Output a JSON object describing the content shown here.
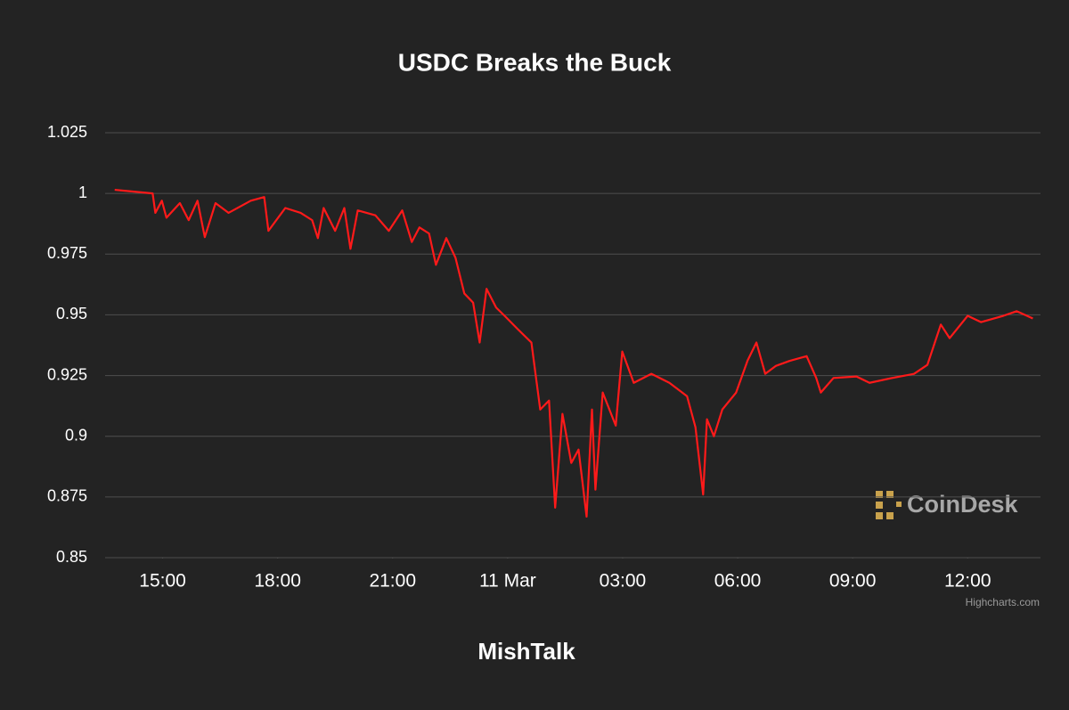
{
  "chart_data": {
    "type": "line",
    "title": "USDC Breaks the Buck",
    "source": "MishTalk",
    "watermark": "CoinDesk",
    "credits": "Highcharts.com",
    "color": "#ff1a1a",
    "grid": true,
    "xlim": [
      13.5,
      37.9
    ],
    "xticks": [
      {
        "value": 15,
        "label": "15:00"
      },
      {
        "value": 18,
        "label": "18:00"
      },
      {
        "value": 21,
        "label": "21:00"
      },
      {
        "value": 24,
        "label": "11 Mar"
      },
      {
        "value": 27,
        "label": "03:00"
      },
      {
        "value": 30,
        "label": "06:00"
      },
      {
        "value": 33,
        "label": "09:00"
      },
      {
        "value": 36,
        "label": "12:00"
      }
    ],
    "ylim": [
      0.85,
      1.025
    ],
    "yticks": [
      1.025,
      1,
      0.975,
      0.95,
      0.925,
      0.9,
      0.875,
      0.85
    ],
    "x": [
      13.75,
      14.74,
      14.81,
      14.98,
      15.1,
      15.45,
      15.68,
      15.91,
      16.1,
      16.38,
      16.72,
      17.3,
      17.65,
      17.76,
      18.2,
      18.6,
      18.9,
      19.05,
      19.2,
      19.5,
      19.74,
      19.9,
      20.09,
      20.55,
      20.9,
      21.25,
      21.5,
      21.7,
      21.95,
      22.13,
      22.4,
      22.64,
      22.87,
      23.1,
      23.27,
      23.45,
      23.7,
      23.92,
      24.27,
      24.62,
      24.85,
      25.08,
      25.24,
      25.43,
      25.66,
      25.85,
      26.06,
      26.2,
      26.29,
      26.48,
      26.82,
      26.99,
      27.29,
      27.75,
      28.22,
      28.68,
      28.9,
      29.1,
      29.2,
      29.38,
      29.6,
      29.96,
      30.26,
      30.49,
      30.72,
      31.0,
      31.35,
      31.8,
      32.05,
      32.17,
      32.5,
      33.1,
      33.44,
      34.0,
      34.6,
      34.95,
      35.3,
      35.53,
      36.0,
      36.35,
      36.93,
      37.28,
      37.7
    ],
    "values": [
      1.0015,
      1.0,
      0.992,
      0.997,
      0.99,
      0.996,
      0.989,
      0.997,
      0.982,
      0.996,
      0.992,
      0.997,
      0.9985,
      0.9846,
      0.994,
      0.992,
      0.989,
      0.9816,
      0.994,
      0.9846,
      0.994,
      0.9772,
      0.993,
      0.991,
      0.9846,
      0.993,
      0.98,
      0.986,
      0.9835,
      0.9706,
      0.9816,
      0.9735,
      0.9588,
      0.955,
      0.9386,
      0.9607,
      0.953,
      0.9496,
      0.944,
      0.9386,
      0.911,
      0.9147,
      0.8706,
      0.9092,
      0.889,
      0.8945,
      0.8669,
      0.911,
      0.878,
      0.918,
      0.9044,
      0.9349,
      0.922,
      0.9257,
      0.922,
      0.9165,
      0.9037,
      0.876,
      0.907,
      0.9,
      0.911,
      0.918,
      0.9312,
      0.9386,
      0.9257,
      0.929,
      0.931,
      0.933,
      0.924,
      0.918,
      0.924,
      0.9246,
      0.922,
      0.9239,
      0.9257,
      0.9294,
      0.946,
      0.9404,
      0.9496,
      0.947,
      0.9496,
      0.9515,
      0.9485
    ]
  }
}
